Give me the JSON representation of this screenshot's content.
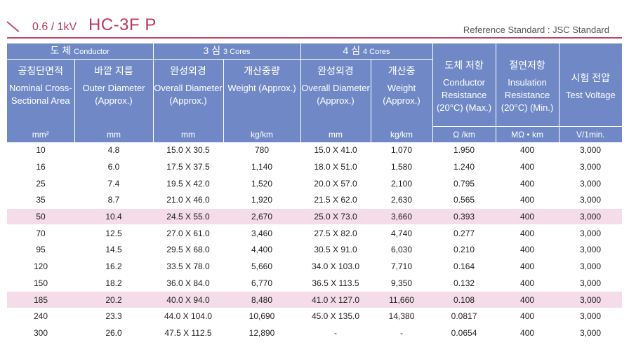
{
  "header": {
    "voltage": "0.6 / 1kV",
    "model": "HC-3F  P",
    "reference": "Reference Standard : JSC Standard"
  },
  "groups": {
    "conductor_kor": "도 체",
    "conductor_eng": "Conductor",
    "three_kor": "3 심",
    "three_eng": "3 Cores",
    "four_kor": "4 심",
    "four_eng": "4 Cores",
    "cond_res_kor": "도체 저항",
    "ins_res_kor": "절연저항",
    "test_kor": "시험 전압"
  },
  "columns": [
    {
      "kor": "공칭단면적",
      "eng": "Nominal Cross- Sectional Area",
      "unit": "mm²"
    },
    {
      "kor": "바깥 지름",
      "eng": "Outer Diameter (Approx.)",
      "unit": "mm"
    },
    {
      "kor": "완성외경",
      "eng": "Overall Diameter (Approx.)",
      "unit": "mm"
    },
    {
      "kor": "개산중량",
      "eng": "Weight (Approx.)",
      "unit": "kg/km"
    },
    {
      "kor": "완성외경",
      "eng": "Overall Diameter (Approx.)",
      "unit": "mm"
    },
    {
      "kor": "개산중",
      "eng": "Weight (Approx.)",
      "unit": "kg/km"
    },
    {
      "kor": "",
      "eng": "Conductor Resistance (20°C) (Max.)",
      "unit": "Ω /km"
    },
    {
      "kor": "",
      "eng": "Insulation Resistance (20°C) (Min.)",
      "unit": "MΩ • km"
    },
    {
      "kor": "",
      "eng": "Test Voltage",
      "unit": "V/1min."
    }
  ],
  "rows": [
    [
      "10",
      "4.8",
      "15.0 X 30.5",
      "780",
      "15.0 X 41.0",
      "1,070",
      "1.950",
      "400",
      "3,000"
    ],
    [
      "16",
      "6.0",
      "17.5 X 37.5",
      "1,140",
      "18.0 X 51.0",
      "1,580",
      "1.240",
      "400",
      "3,000"
    ],
    [
      "25",
      "7.4",
      "19.5 X 42.0",
      "1,520",
      "20.0 X 57.0",
      "2,100",
      "0.795",
      "400",
      "3,000"
    ],
    [
      "35",
      "8.7",
      "21.0 X 46.0",
      "1,920",
      "21.5 X 62.0",
      "2,630",
      "0.565",
      "400",
      "3,000"
    ],
    [
      "50",
      "10.4",
      "24.5 X 55.0",
      "2,670",
      "25.0 X 73.0",
      "3,660",
      "0.393",
      "400",
      "3,000"
    ],
    [
      "70",
      "12.5",
      "27.0 X 61.0",
      "3,460",
      "27.5 X 82.0",
      "4,740",
      "0.277",
      "400",
      "3,000"
    ],
    [
      "95",
      "14.5",
      "29.5 X 68.0",
      "4,400",
      "30.5 X 91.0",
      "6,030",
      "0.210",
      "400",
      "3,000"
    ],
    [
      "120",
      "16.2",
      "33.5 X 78.0",
      "5,660",
      "34.0 X 103.0",
      "7,710",
      "0.164",
      "400",
      "3,000"
    ],
    [
      "150",
      "18.2",
      "36.0 X 84.0",
      "6,770",
      "36.5 X 113.5",
      "9,350",
      "0.132",
      "400",
      "3,000"
    ],
    [
      "185",
      "20.2",
      "40.0 X 94.0",
      "8,480",
      "41.0 X 127.0",
      "11,660",
      "0.108",
      "400",
      "3,000"
    ],
    [
      "240",
      "23.3",
      "44.0 X 104.0",
      "10,690",
      "45.0 X 135.0",
      "14,380",
      "0.0817",
      "400",
      "3,000"
    ],
    [
      "300",
      "26.0",
      "47.5 X 112.5",
      "12,890",
      "-",
      "-",
      "0.0654",
      "400",
      "3,000"
    ]
  ],
  "highlighted_rows": [
    4,
    9
  ],
  "colors": {
    "header_bg": "#7089c6",
    "highlight_row": "#f4dce8",
    "accent": "#c0345c"
  }
}
